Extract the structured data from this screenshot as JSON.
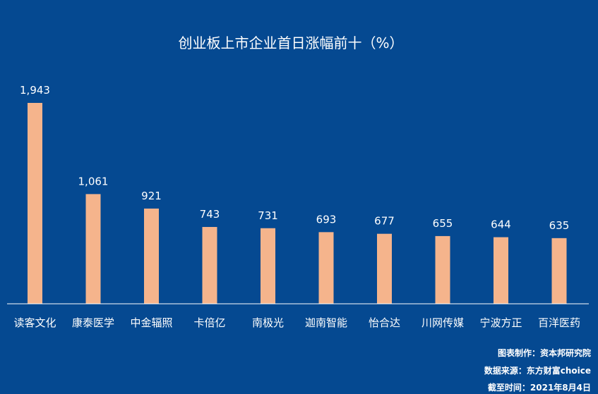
{
  "chart_data": {
    "type": "bar",
    "title": "创业板上市企业首日涨幅前十（%）",
    "categories": [
      "读客文化",
      "康泰医学",
      "中金辐照",
      "卡倍亿",
      "南极光",
      "迦南智能",
      "怡合达",
      "川网传媒",
      "宁波方正",
      "百洋医药"
    ],
    "values": [
      1943,
      1061,
      921,
      743,
      731,
      693,
      677,
      655,
      644,
      635
    ],
    "value_labels": [
      "1,943",
      "1,061",
      "921",
      "743",
      "731",
      "693",
      "677",
      "655",
      "644",
      "635"
    ],
    "ylim": [
      0,
      2000
    ],
    "grid": false,
    "legend": "none",
    "bar_color": "#F5B48C",
    "background_color": "#054991"
  },
  "footnotes": {
    "maker": "图表制作：资本邦研究院",
    "source": "数据来源：东方财富choice",
    "date": "截至时间：2021年8月4日"
  }
}
